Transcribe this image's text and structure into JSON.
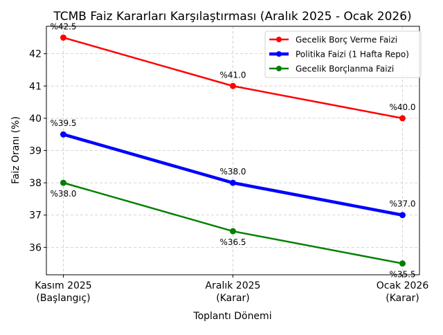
{
  "chart_data": {
    "type": "line",
    "title": "TCMB Faiz Kararları Karşılaştırması (Aralık 2025 - Ocak 2026)",
    "xlabel": "Toplantı Dönemi",
    "ylabel": "Faiz Oranı (%)",
    "categories": [
      [
        "Kasım 2025",
        "(Başlangıç)"
      ],
      [
        "Aralık 2025",
        "(Karar)"
      ],
      [
        "Ocak 2026",
        "(Karar)"
      ]
    ],
    "ylim": [
      35.15,
      42.85
    ],
    "yticks": [
      36,
      37,
      38,
      39,
      40,
      41,
      42
    ],
    "grid": true,
    "legend_position": "top-right",
    "series": [
      {
        "name": "Gecelik Borç Verme Faizi",
        "values": [
          42.5,
          41.0,
          40.0
        ],
        "color": "#ff0000",
        "width": 2,
        "labels": [
          "%42.5",
          "%41.0",
          "%40.0"
        ],
        "label_pos": "above"
      },
      {
        "name": "Politika Faizi (1 Hafta Repo)",
        "values": [
          39.5,
          38.0,
          37.0
        ],
        "color": "#0000ff",
        "width": 4,
        "labels": [
          "%39.5",
          "%38.0",
          "%37.0"
        ],
        "label_pos": "above"
      },
      {
        "name": "Gecelik Borçlanma Faizi",
        "values": [
          38.0,
          36.5,
          35.5
        ],
        "color": "#008000",
        "width": 2,
        "labels": [
          "%38.0",
          "%36.5",
          "%35.5"
        ],
        "label_pos": "below"
      }
    ]
  }
}
